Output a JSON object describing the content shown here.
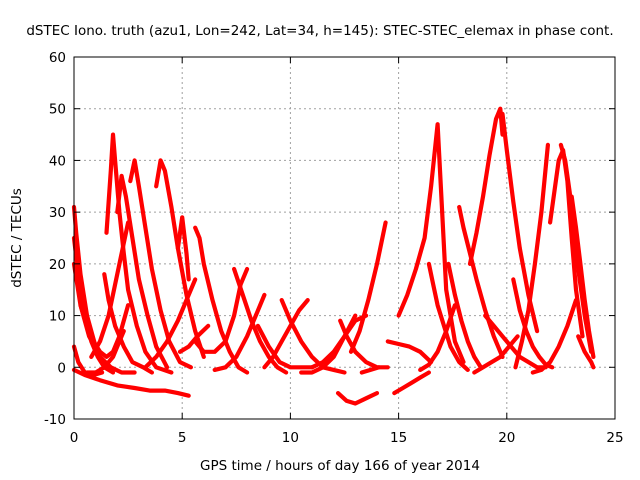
{
  "chart_data": {
    "type": "scatter",
    "title": "dSTEC Iono. truth (azu1, Lon=242, Lat=34, h=145): STEC-STEC_elemax in phase cont.",
    "xlabel": "GPS time / hours of day 166 of year 2014",
    "ylabel": "dSTEC  / TECUs",
    "xlim": [
      0,
      25
    ],
    "ylim": [
      -10,
      60
    ],
    "xticks": [
      "0",
      "5",
      "10",
      "15",
      "20",
      "25"
    ],
    "yticks": [
      "-10",
      "0",
      "10",
      "20",
      "30",
      "40",
      "50",
      "60"
    ],
    "grid": true,
    "marker": "+",
    "color": "#ff0000",
    "series": [
      {
        "x": [
          0,
          0.1,
          0.3,
          0.6,
          1.0
        ],
        "y": [
          31,
          26,
          18,
          10,
          4
        ]
      },
      {
        "x": [
          0,
          0.2,
          0.5,
          0.8,
          1.1,
          1.4,
          1.8
        ],
        "y": [
          25,
          18,
          10,
          5,
          2,
          0,
          -1
        ]
      },
      {
        "x": [
          0,
          0.3,
          0.7,
          1.2,
          1.7,
          2.2,
          2.8
        ],
        "y": [
          20,
          12,
          6,
          2,
          0,
          -1,
          -1
        ]
      },
      {
        "x": [
          0,
          0.2,
          0.5,
          0.9,
          1.3
        ],
        "y": [
          4,
          1,
          -1,
          -1.5,
          -1
        ]
      },
      {
        "x": [
          0,
          0.5,
          1.2,
          2.0,
          2.8,
          3.5,
          4.2,
          4.8,
          5.3
        ],
        "y": [
          -0.5,
          -1.5,
          -2.5,
          -3.5,
          -4,
          -4.5,
          -4.5,
          -5,
          -5.5
        ]
      },
      {
        "x": [
          0.6,
          1.0,
          1.4,
          1.8,
          2.1,
          2.3
        ],
        "y": [
          -1,
          -1,
          0,
          2,
          5,
          7
        ]
      },
      {
        "x": [
          0.3,
          0.6,
          0.9,
          1.2,
          1.5,
          1.8,
          2.1,
          2.5
        ],
        "y": [
          12,
          8,
          5,
          3,
          2,
          3,
          6,
          12
        ]
      },
      {
        "x": [
          0.8,
          1.2,
          1.6,
          1.9,
          2.2,
          2.5
        ],
        "y": [
          2,
          5,
          10,
          16,
          22,
          28
        ]
      },
      {
        "x": [
          1.5,
          1.7,
          1.8,
          1.9,
          2.1,
          2.3,
          2.5,
          2.9,
          3.3,
          3.8,
          4.5
        ],
        "y": [
          26,
          38,
          45,
          40,
          30,
          22,
          15,
          8,
          3,
          0,
          -1
        ]
      },
      {
        "x": [
          1.4,
          1.6,
          1.9,
          2.3,
          2.7,
          3.2,
          3.6
        ],
        "y": [
          18,
          13,
          8,
          4,
          1,
          0,
          -1
        ]
      },
      {
        "x": [
          2.0,
          2.2,
          2.4,
          2.7,
          3.0,
          3.4,
          3.8,
          4.3
        ],
        "y": [
          30,
          37,
          33,
          25,
          17,
          10,
          4,
          0
        ]
      },
      {
        "x": [
          2.6,
          2.8,
          3.0,
          3.3,
          3.6,
          4.0,
          4.4,
          4.9,
          5.4
        ],
        "y": [
          36,
          40,
          35,
          27,
          19,
          11,
          5,
          1,
          0
        ]
      },
      {
        "x": [
          3.8,
          4.0,
          4.2,
          4.5,
          4.8,
          5.2,
          5.6,
          6.0
        ],
        "y": [
          35,
          40,
          38,
          31,
          23,
          14,
          7,
          2
        ]
      },
      {
        "x": [
          4.8,
          5.0,
          5.2,
          5.3
        ],
        "y": [
          23,
          29,
          22,
          17
        ]
      },
      {
        "x": [
          3.3,
          3.8,
          4.3,
          4.8,
          5.2,
          5.6
        ],
        "y": [
          0,
          2,
          5,
          9,
          13,
          17
        ]
      },
      {
        "x": [
          4.9,
          5.3,
          5.7,
          6.2
        ],
        "y": [
          3,
          4,
          6,
          8
        ]
      },
      {
        "x": [
          5.6,
          5.8,
          6.0,
          6.4,
          6.8,
          7.2,
          7.6,
          8.0
        ],
        "y": [
          27,
          25,
          20,
          13,
          7,
          3,
          0,
          -1
        ]
      },
      {
        "x": [
          5.6,
          6.0,
          6.5,
          7.0,
          7.4,
          7.7,
          8.0
        ],
        "y": [
          5,
          3,
          3,
          5,
          10,
          16,
          19
        ]
      },
      {
        "x": [
          6.5,
          7.0,
          7.5,
          8.0,
          8.4,
          8.8
        ],
        "y": [
          -0.5,
          0,
          2,
          6,
          10,
          14
        ]
      },
      {
        "x": [
          7.4,
          7.8,
          8.2,
          8.6,
          9.0,
          9.4,
          9.8
        ],
        "y": [
          19,
          14,
          9,
          5,
          2,
          0,
          -1
        ]
      },
      {
        "x": [
          8.5,
          9.0,
          9.5,
          10.0,
          10.5,
          11.0
        ],
        "y": [
          8,
          4,
          1,
          0,
          0,
          0
        ]
      },
      {
        "x": [
          8.8,
          9.2,
          9.6,
          10.0,
          10.4,
          10.8
        ],
        "y": [
          0,
          2,
          5,
          8,
          11,
          13
        ]
      },
      {
        "x": [
          9.6,
          10.0,
          10.5,
          11.0,
          11.5,
          12.0,
          12.5
        ],
        "y": [
          13,
          9,
          5,
          2,
          0,
          -0.5,
          -1
        ]
      },
      {
        "x": [
          10.5,
          11.0,
          11.5,
          12.0,
          12.5,
          13.0
        ],
        "y": [
          -1,
          -1,
          0,
          2,
          6,
          10
        ]
      },
      {
        "x": [
          11.0,
          11.5,
          12.0,
          12.5,
          13.0,
          13.5
        ],
        "y": [
          0,
          1,
          3,
          6,
          9,
          10
        ]
      },
      {
        "x": [
          12.2,
          12.6,
          13.0,
          13.5,
          14.0
        ],
        "y": [
          -5,
          -6.5,
          -7,
          -6,
          -5
        ]
      },
      {
        "x": [
          12.3,
          12.6,
          13.0,
          13.5,
          14.0,
          14.5
        ],
        "y": [
          9,
          6,
          3,
          1,
          0,
          0
        ]
      },
      {
        "x": [
          12.8,
          13.2,
          13.6,
          14.0,
          14.4
        ],
        "y": [
          3,
          7,
          13,
          20,
          28
        ]
      },
      {
        "x": [
          13.3,
          13.7,
          14.1
        ],
        "y": [
          -1,
          -0.5,
          0
        ]
      },
      {
        "x": [
          14.8,
          15.2,
          15.6,
          16.0,
          16.4
        ],
        "y": [
          -5,
          -4,
          -3,
          -2,
          -1
        ]
      },
      {
        "x": [
          14.5,
          15.0,
          15.5,
          16.0,
          16.5
        ],
        "y": [
          5,
          4.5,
          4,
          3,
          1
        ]
      },
      {
        "x": [
          15.0,
          15.4,
          15.8,
          16.2,
          16.5,
          16.8,
          17.2,
          17.6,
          18.0
        ],
        "y": [
          10,
          14,
          19,
          25,
          35,
          47,
          15,
          5,
          1
        ]
      },
      {
        "x": [
          16.0,
          16.4,
          16.8,
          17.2,
          17.6
        ],
        "y": [
          -0.5,
          0.5,
          3,
          7,
          12
        ]
      },
      {
        "x": [
          16.4,
          16.6,
          16.8,
          17.1,
          17.4,
          17.8,
          18.2
        ],
        "y": [
          20,
          16,
          12,
          8,
          4,
          1,
          -0.5
        ]
      },
      {
        "x": [
          17.3,
          17.6,
          17.9,
          18.2,
          18.5,
          18.8
        ],
        "y": [
          20,
          14,
          9,
          5,
          2,
          0
        ]
      },
      {
        "x": [
          17.8,
          18.0,
          18.3,
          18.6,
          19.0,
          19.4,
          19.8
        ],
        "y": [
          31,
          27,
          22,
          17,
          11,
          6,
          2
        ]
      },
      {
        "x": [
          18.3,
          18.6,
          18.9,
          19.2,
          19.5,
          19.7,
          19.8
        ],
        "y": [
          20,
          26,
          33,
          41,
          48,
          50,
          45
        ]
      },
      {
        "x": [
          19.8,
          20.0,
          20.3,
          20.6,
          21.0,
          21.4
        ],
        "y": [
          49,
          42,
          32,
          23,
          14,
          7
        ]
      },
      {
        "x": [
          18.5,
          18.9,
          19.3,
          19.7,
          20.1,
          20.5
        ],
        "y": [
          -1,
          0,
          1,
          2,
          4,
          6
        ]
      },
      {
        "x": [
          19.0,
          19.4,
          19.8,
          20.2,
          20.6,
          21.0,
          21.4,
          21.8
        ],
        "y": [
          10,
          8,
          6,
          4,
          2,
          1,
          0,
          0
        ]
      },
      {
        "x": [
          20.3,
          20.6,
          20.9,
          21.2,
          21.5,
          21.8,
          22.1
        ],
        "y": [
          17,
          11,
          7,
          4,
          2,
          0.5,
          0
        ]
      },
      {
        "x": [
          20.4,
          20.7,
          21.0,
          21.3,
          21.6,
          21.9
        ],
        "y": [
          0,
          5,
          11,
          20,
          30,
          43
        ]
      },
      {
        "x": [
          21.2,
          21.6,
          22.0,
          22.4,
          22.8,
          23.2
        ],
        "y": [
          -1,
          -0.5,
          1,
          4,
          8,
          13
        ]
      },
      {
        "x": [
          22.0,
          22.2,
          22.4,
          22.6,
          22.8,
          23.0,
          23.2,
          23.5
        ],
        "y": [
          28,
          34,
          40,
          42,
          36,
          25,
          15,
          6
        ]
      },
      {
        "x": [
          22.5,
          22.7,
          22.9,
          23.1,
          23.3,
          23.6,
          23.9
        ],
        "y": [
          43,
          40,
          34,
          27,
          19,
          10,
          3
        ]
      },
      {
        "x": [
          23.0,
          23.2,
          23.4,
          23.6,
          23.8,
          24.0
        ],
        "y": [
          33,
          27,
          20,
          13,
          7,
          2
        ]
      },
      {
        "x": [
          23.3,
          23.6,
          23.9,
          24.0
        ],
        "y": [
          6,
          3,
          1,
          0
        ]
      }
    ]
  }
}
